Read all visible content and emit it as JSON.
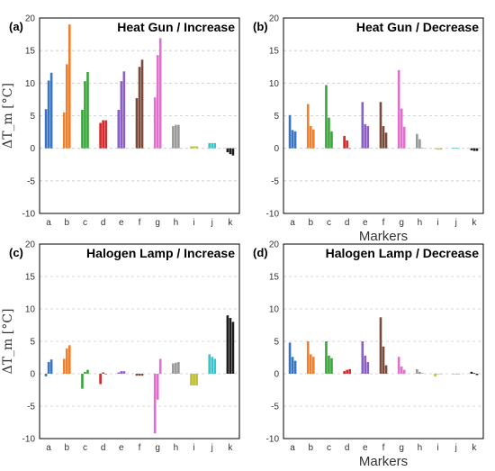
{
  "chart_data": [
    {
      "type": "bar",
      "panel_label": "(a)",
      "title": "Heat Gun / Increase",
      "xlabel": "",
      "ylabel": "ΔT_m [°C]",
      "ylim": [
        -10,
        20
      ],
      "yticks": [
        -10,
        -5,
        0,
        5,
        10,
        15,
        20
      ],
      "grid": true,
      "categories": [
        "a",
        "b",
        "c",
        "d",
        "e",
        "f",
        "g",
        "h",
        "i",
        "j",
        "k"
      ],
      "bars_per_group": 3,
      "values": [
        [
          6.0,
          10.4,
          11.6
        ],
        [
          5.5,
          12.9,
          19.0
        ],
        [
          5.9,
          10.3,
          11.7
        ],
        [
          3.9,
          4.3,
          4.3
        ],
        [
          5.9,
          10.3,
          11.8
        ],
        [
          7.7,
          12.5,
          13.6
        ],
        [
          7.8,
          14.3,
          16.9
        ],
        [
          3.4,
          3.6,
          3.6
        ],
        [
          0.3,
          0.3,
          0.3
        ],
        [
          0.8,
          0.8,
          0.8
        ],
        [
          -0.6,
          -0.9,
          -1.1
        ]
      ]
    },
    {
      "type": "bar",
      "panel_label": "(b)",
      "title": "Heat Gun / Decrease",
      "xlabel": "Markers",
      "ylabel": "",
      "ylim": [
        -10,
        20
      ],
      "yticks": [
        -10,
        -5,
        0,
        5,
        10,
        15,
        20
      ],
      "grid": true,
      "categories": [
        "a",
        "b",
        "c",
        "d",
        "e",
        "f",
        "g",
        "h",
        "i",
        "j",
        "k"
      ],
      "bars_per_group": 3,
      "values": [
        [
          5.1,
          2.8,
          2.6
        ],
        [
          6.8,
          3.4,
          2.9
        ],
        [
          9.7,
          4.7,
          2.6
        ],
        [
          1.9,
          1.2,
          0.0
        ],
        [
          7.1,
          3.7,
          3.4
        ],
        [
          7.1,
          3.4,
          2.4
        ],
        [
          12.0,
          6.1,
          3.3
        ],
        [
          2.2,
          1.4,
          0.1
        ],
        [
          -0.1,
          -0.2,
          -0.2
        ],
        [
          0.1,
          0.1,
          0.0
        ],
        [
          -0.3,
          -0.4,
          -0.4
        ]
      ]
    },
    {
      "type": "bar",
      "panel_label": "(c)",
      "title": "Halogen Lamp / Increase",
      "xlabel": "",
      "ylabel": "ΔT_m [°C]",
      "ylim": [
        -10,
        20
      ],
      "yticks": [
        -10,
        -5,
        0,
        5,
        10,
        15,
        20
      ],
      "grid": true,
      "categories": [
        "a",
        "b",
        "c",
        "d",
        "e",
        "f",
        "g",
        "h",
        "i",
        "j",
        "k"
      ],
      "bars_per_group": 3,
      "values": [
        [
          -0.4,
          1.8,
          2.2
        ],
        [
          2.3,
          3.9,
          4.4
        ],
        [
          -2.3,
          0.3,
          0.6
        ],
        [
          -1.6,
          0.2,
          0.0
        ],
        [
          0.2,
          0.4,
          0.4
        ],
        [
          -0.3,
          -0.3,
          -0.3
        ],
        [
          -9.2,
          -4.0,
          2.3
        ],
        [
          1.6,
          1.7,
          1.8
        ],
        [
          -1.8,
          -1.8,
          -1.8
        ],
        [
          3.0,
          2.6,
          2.3
        ],
        [
          9.0,
          8.6,
          8.0
        ]
      ]
    },
    {
      "type": "bar",
      "panel_label": "(d)",
      "title": "Halogen Lamp / Decrease",
      "xlabel": "Markers",
      "ylabel": "",
      "ylim": [
        -10,
        20
      ],
      "yticks": [
        -10,
        -5,
        0,
        5,
        10,
        15,
        20
      ],
      "grid": true,
      "categories": [
        "a",
        "b",
        "c",
        "d",
        "e",
        "f",
        "g",
        "h",
        "i",
        "j",
        "k"
      ],
      "bars_per_group": 3,
      "values": [
        [
          4.8,
          2.6,
          2.0
        ],
        [
          5.0,
          3.0,
          2.6
        ],
        [
          5.0,
          2.8,
          2.4
        ],
        [
          0.4,
          0.6,
          0.7
        ],
        [
          5.0,
          2.8,
          1.8
        ],
        [
          8.7,
          4.2,
          1.3
        ],
        [
          2.6,
          1.1,
          0.6
        ],
        [
          0.7,
          0.3,
          0.1
        ],
        [
          -0.4,
          0.0,
          0.0
        ],
        [
          0.0,
          0.0,
          0.0
        ],
        [
          0.3,
          0.1,
          -0.2
        ]
      ]
    }
  ],
  "colors": [
    "#3a75c4",
    "#f07f2e",
    "#3aa53a",
    "#d62728",
    "#8c5fc4",
    "#7a4b3a",
    "#e070cc",
    "#999999",
    "#bdbd2a",
    "#3ac4cc",
    "#1e1e1e"
  ]
}
